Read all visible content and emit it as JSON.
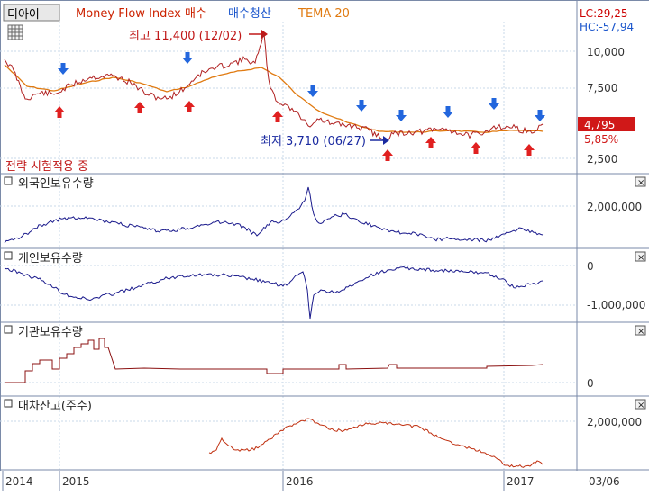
{
  "header": {
    "toggle_label": "디아이",
    "title_parts": [
      {
        "text": "Money Flow Index 매수",
        "color": "#cc2200"
      },
      {
        "text": "매수청산",
        "color": "#1a55cc"
      },
      {
        "text": "TEMA 20",
        "color": "#e07a10"
      }
    ],
    "lc_label": "LC:29,25",
    "hc_label": "HC:-57,94"
  },
  "price_panel": {
    "high_annotation": "최고 11,400 (12/02)",
    "low_annotation": "최저 3,710 (06/27)",
    "strategy_label": "전략 시험적용 중",
    "current_price": "4,795",
    "change_pct": "5,85%",
    "y_ticks": [
      "10,000",
      "7,500",
      "2,500"
    ]
  },
  "panels": [
    {
      "title": "외국인보유수량",
      "ticks": [
        "2,000,000"
      ]
    },
    {
      "title": "개인보유수량",
      "ticks": [
        "0",
        "-1,000,000"
      ]
    },
    {
      "title": "기관보유수량",
      "ticks": [
        "0"
      ]
    },
    {
      "title": "대차잔고(주수)",
      "ticks": [
        "2,000,000"
      ]
    }
  ],
  "x_axis": {
    "labels": [
      "2014",
      "2015",
      "2016",
      "2017"
    ],
    "right_label": "03/06"
  },
  "colors": {
    "price_line": "#b02020",
    "tema_line": "#e07a10",
    "buy_arrow": "#e02020",
    "sell_arrow": "#2266dd",
    "foreign_line": "#1a1a8c",
    "individual_line": "#1a1a8c",
    "institution_line": "#8b1010",
    "loan_line": "#c03010",
    "grid": "#c8d8e8",
    "divider": "#7a8aa8"
  },
  "icons": {
    "grid_toggle": "grid-icon",
    "panel_close": "close-icon",
    "panel_collapse": "collapse-icon"
  }
}
